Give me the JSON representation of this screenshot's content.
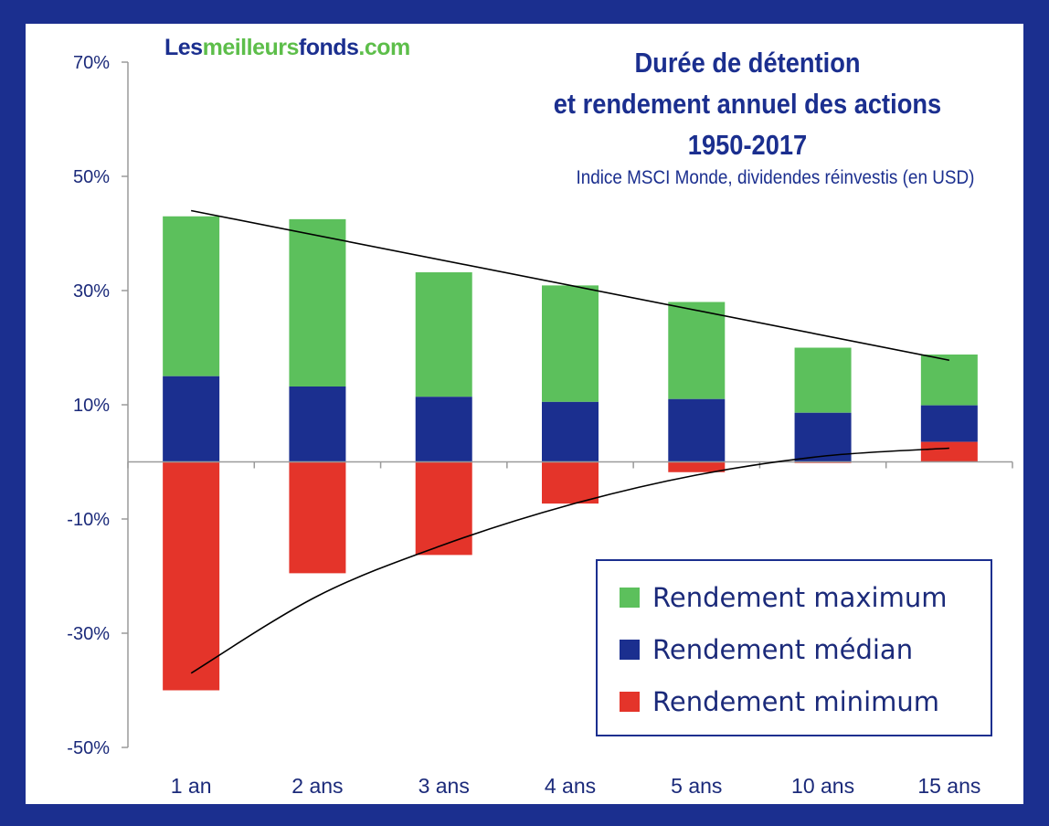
{
  "brand": {
    "part1": "Les",
    "part2": "meilleurs",
    "part3": "fonds",
    "part4": ".com"
  },
  "colors": {
    "max": "#5cc05c",
    "median": "#1b2f8f",
    "min": "#e4342a",
    "text": "#1b2a7a"
  },
  "chart_data": {
    "type": "bar",
    "stacked": true,
    "title": "Durée de détention\net rendement annuel des actions\n1950-2017",
    "title_lines": [
      "Durée de détention",
      "et rendement annuel des actions",
      "1950-2017"
    ],
    "subtitle": "Indice MSCI Monde, dividendes réinvestis (en USD)",
    "xlabel": "",
    "ylabel": "",
    "categories": [
      "1 an",
      "2 ans",
      "3 ans",
      "4 ans",
      "5 ans",
      "10 ans",
      "15 ans"
    ],
    "ylim": [
      -50,
      70
    ],
    "yticks": [
      70,
      50,
      30,
      10,
      -10,
      -30,
      -50
    ],
    "ytick_labels": [
      "70%",
      "50%",
      "30%",
      "10%",
      "-10%",
      "-30%",
      "-50%"
    ],
    "series": [
      {
        "name": "Rendement maximum",
        "values": [
          43.0,
          42.5,
          33.2,
          30.9,
          28.0,
          20.0,
          18.8
        ]
      },
      {
        "name": "Rendement médian",
        "values": [
          15.0,
          13.2,
          11.4,
          10.5,
          11.0,
          8.6,
          9.9
        ]
      },
      {
        "name": "Rendement minimum",
        "values": [
          -40.0,
          -19.5,
          -16.3,
          -7.3,
          -1.8,
          -0.2,
          3.5
        ]
      }
    ],
    "trendlines": [
      {
        "points": [
          [
            0,
            44.0
          ],
          [
            6,
            17.8
          ]
        ]
      },
      {
        "points": [
          [
            0,
            -37.0
          ],
          [
            1,
            -23.5
          ],
          [
            2,
            -14.5
          ],
          [
            3,
            -7.5
          ],
          [
            4,
            -2.3
          ],
          [
            5,
            1.0
          ],
          [
            6,
            2.4
          ]
        ]
      }
    ],
    "legend": "bottom-right",
    "grid": false
  }
}
